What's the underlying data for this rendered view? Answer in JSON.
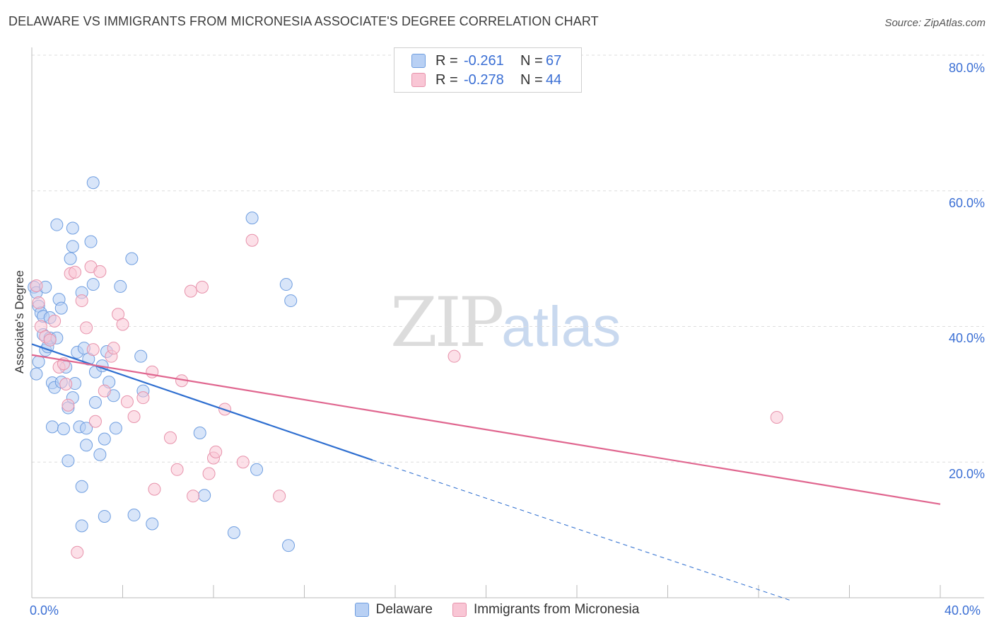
{
  "header": {
    "title": "DELAWARE VS IMMIGRANTS FROM MICRONESIA ASSOCIATE'S DEGREE CORRELATION CHART",
    "source": "Source: ZipAtlas.com"
  },
  "watermark": {
    "zip": "ZIP",
    "atlas": "atlas"
  },
  "legend_top": {
    "rows": [
      {
        "r_label": "R =",
        "r_value": "-0.261",
        "n_label": "N =",
        "n_value": "67",
        "color": "#b8d0f4",
        "border": "#6f9ee0"
      },
      {
        "r_label": "R =",
        "r_value": "-0.278",
        "n_label": "N =",
        "n_value": "44",
        "color": "#f9c6d5",
        "border": "#e792ab"
      }
    ]
  },
  "legend_bottom": {
    "items": [
      {
        "label": "Delaware",
        "color": "#b8d0f4",
        "border": "#6f9ee0"
      },
      {
        "label": "Immigrants from Micronesia",
        "color": "#f9c6d5",
        "border": "#e792ab"
      }
    ]
  },
  "chart_data": {
    "type": "scatter",
    "title": "DELAWARE VS IMMIGRANTS FROM MICRONESIA ASSOCIATE'S DEGREE CORRELATION CHART",
    "xlabel": "",
    "ylabel": "Associate's Degree",
    "xlim": [
      0,
      40
    ],
    "ylim": [
      0,
      80
    ],
    "x_tick_labels": [
      "0.0%",
      "40.0%"
    ],
    "y_tick_labels": [
      {
        "value": 80,
        "label": "80.0%"
      },
      {
        "value": 60,
        "label": "60.0%"
      },
      {
        "value": 40,
        "label": "40.0%"
      },
      {
        "value": 20,
        "label": "20.0%"
      }
    ],
    "grid": true,
    "series": [
      {
        "name": "Delaware",
        "color": "#6f9ee0",
        "fill": "#b8d0f4",
        "trend": {
          "x0": 0,
          "y0": 37.4,
          "x1": 15,
          "y1": 20.3,
          "dash_to_x": 33.5,
          "dash_to_y": -0.5
        },
        "points": [
          [
            0.1,
            45.8
          ],
          [
            0.2,
            45.0
          ],
          [
            0.3,
            43.0
          ],
          [
            0.3,
            34.8
          ],
          [
            0.4,
            42.0
          ],
          [
            0.5,
            38.8
          ],
          [
            0.5,
            41.5
          ],
          [
            0.6,
            36.5
          ],
          [
            0.6,
            45.8
          ],
          [
            0.7,
            37.0
          ],
          [
            0.8,
            38.0
          ],
          [
            0.8,
            38.3
          ],
          [
            0.8,
            41.3
          ],
          [
            0.9,
            31.7
          ],
          [
            0.9,
            25.2
          ],
          [
            1.0,
            31.0
          ],
          [
            1.1,
            38.3
          ],
          [
            1.1,
            55.0
          ],
          [
            1.2,
            44.0
          ],
          [
            1.3,
            42.7
          ],
          [
            1.3,
            31.8
          ],
          [
            1.4,
            24.9
          ],
          [
            1.5,
            34.0
          ],
          [
            1.6,
            28.0
          ],
          [
            1.6,
            20.2
          ],
          [
            1.7,
            50.0
          ],
          [
            1.8,
            51.8
          ],
          [
            1.8,
            29.5
          ],
          [
            1.8,
            54.5
          ],
          [
            2.0,
            36.2
          ],
          [
            2.1,
            25.2
          ],
          [
            2.2,
            16.4
          ],
          [
            2.2,
            10.6
          ],
          [
            2.2,
            45.0
          ],
          [
            2.3,
            36.8
          ],
          [
            2.4,
            25.0
          ],
          [
            2.4,
            22.5
          ],
          [
            2.5,
            35.2
          ],
          [
            2.6,
            52.5
          ],
          [
            2.7,
            46.2
          ],
          [
            2.7,
            61.2
          ],
          [
            2.8,
            33.3
          ],
          [
            2.8,
            28.8
          ],
          [
            3.0,
            21.1
          ],
          [
            3.1,
            34.2
          ],
          [
            3.2,
            12.0
          ],
          [
            3.2,
            23.4
          ],
          [
            3.3,
            36.3
          ],
          [
            3.4,
            31.8
          ],
          [
            3.6,
            29.8
          ],
          [
            3.7,
            25.0
          ],
          [
            3.9,
            45.9
          ],
          [
            4.4,
            50.0
          ],
          [
            4.5,
            12.2
          ],
          [
            4.8,
            35.6
          ],
          [
            4.9,
            30.5
          ],
          [
            5.3,
            10.9
          ],
          [
            7.4,
            24.3
          ],
          [
            7.6,
            15.1
          ],
          [
            8.9,
            9.6
          ],
          [
            9.7,
            56.0
          ],
          [
            9.9,
            18.9
          ],
          [
            11.2,
            46.2
          ],
          [
            11.3,
            7.7
          ],
          [
            11.4,
            43.8
          ],
          [
            0.2,
            33.0
          ],
          [
            1.9,
            31.6
          ]
        ]
      },
      {
        "name": "Immigrants from Micronesia",
        "color": "#e792ab",
        "fill": "#f9c6d5",
        "trend": {
          "x0": 0,
          "y0": 35.8,
          "x1": 40,
          "y1": 13.8
        },
        "points": [
          [
            0.2,
            46.0
          ],
          [
            0.3,
            43.5
          ],
          [
            0.4,
            40.0
          ],
          [
            0.6,
            38.5
          ],
          [
            0.8,
            38.0
          ],
          [
            1.0,
            40.8
          ],
          [
            1.2,
            34.0
          ],
          [
            1.4,
            34.5
          ],
          [
            1.5,
            31.5
          ],
          [
            1.6,
            28.4
          ],
          [
            1.7,
            47.8
          ],
          [
            1.9,
            48.0
          ],
          [
            2.0,
            6.7
          ],
          [
            2.2,
            43.8
          ],
          [
            2.4,
            39.8
          ],
          [
            2.6,
            48.8
          ],
          [
            2.7,
            36.6
          ],
          [
            2.8,
            26.0
          ],
          [
            3.0,
            48.1
          ],
          [
            3.2,
            30.5
          ],
          [
            3.5,
            35.6
          ],
          [
            3.6,
            36.8
          ],
          [
            3.8,
            41.8
          ],
          [
            4.0,
            40.3
          ],
          [
            4.2,
            28.9
          ],
          [
            4.5,
            26.7
          ],
          [
            4.9,
            29.5
          ],
          [
            5.3,
            33.3
          ],
          [
            5.4,
            16.0
          ],
          [
            6.1,
            23.6
          ],
          [
            6.4,
            18.9
          ],
          [
            6.6,
            32.0
          ],
          [
            7.0,
            45.2
          ],
          [
            7.1,
            15.0
          ],
          [
            7.5,
            45.8
          ],
          [
            7.8,
            18.3
          ],
          [
            8.0,
            20.6
          ],
          [
            8.1,
            21.5
          ],
          [
            8.5,
            27.8
          ],
          [
            9.3,
            20.0
          ],
          [
            9.7,
            52.7
          ],
          [
            10.9,
            15.0
          ],
          [
            18.6,
            35.6
          ],
          [
            32.8,
            26.6
          ]
        ]
      }
    ]
  }
}
